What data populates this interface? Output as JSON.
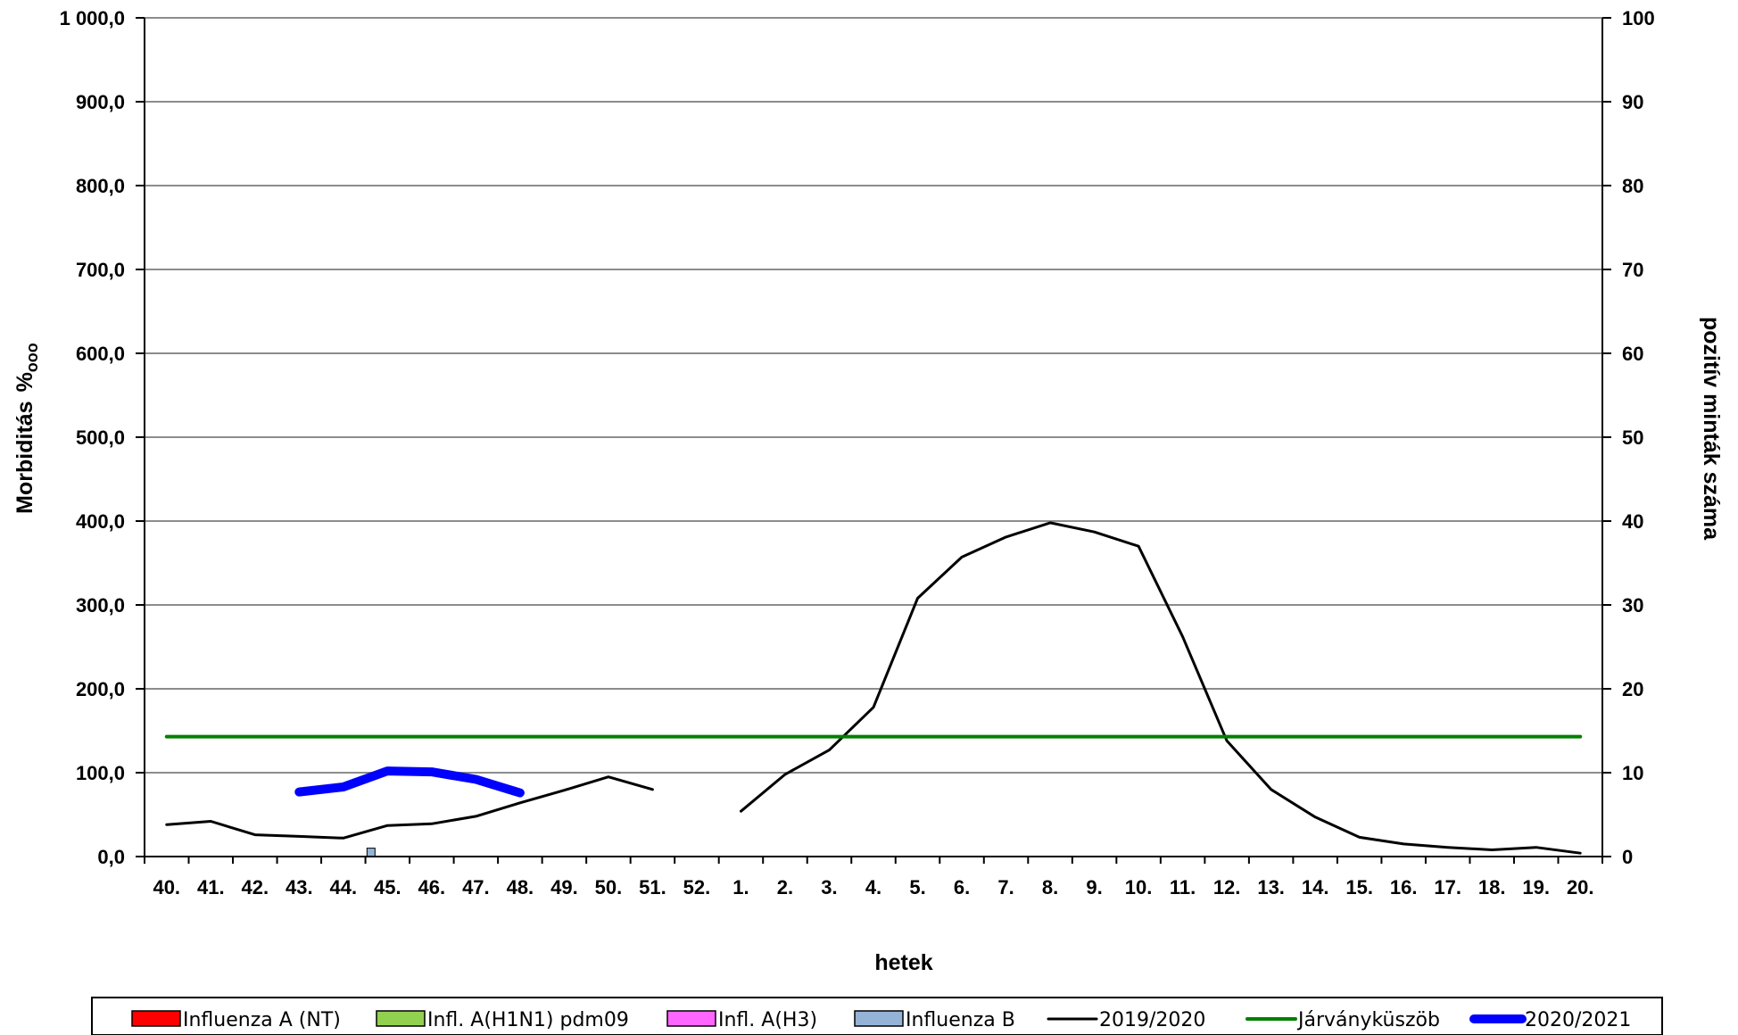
{
  "chart_data": {
    "type": "line",
    "xlabel": "hetek",
    "ylabel_left": "Morbiditás",
    "ylabel_left_unit": "%ooo",
    "ylabel_right": "pozitív minták száma",
    "categories": [
      "40.",
      "41.",
      "42.",
      "43.",
      "44.",
      "45.",
      "46.",
      "47.",
      "48.",
      "49.",
      "50.",
      "51.",
      "52.",
      "1.",
      "2.",
      "3.",
      "4.",
      "5.",
      "6.",
      "7.",
      "8.",
      "9.",
      "10.",
      "11.",
      "12.",
      "13.",
      "14.",
      "15.",
      "16.",
      "17.",
      "18.",
      "19.",
      "20."
    ],
    "ylim_left": [
      0,
      1000
    ],
    "ylim_right": [
      0,
      100
    ],
    "left_ticks": [
      "0,0",
      "100,0",
      "200,0",
      "300,0",
      "400,0",
      "500,0",
      "600,0",
      "700,0",
      "800,0",
      "900,0",
      "1 000,0"
    ],
    "right_ticks": [
      "0",
      "10",
      "20",
      "30",
      "40",
      "50",
      "60",
      "70",
      "80",
      "90",
      "100"
    ],
    "grid": true,
    "legend_position": "bottom",
    "series": [
      {
        "name": "Influenza A (NT)",
        "kind": "bar",
        "axis": "right",
        "color": "#ff0000",
        "values": [
          0,
          0,
          0,
          0,
          0,
          0,
          0,
          0,
          0,
          0,
          0,
          0,
          0,
          0,
          0,
          0,
          0,
          0,
          0,
          0,
          0,
          0,
          0,
          0,
          0,
          0,
          0,
          0,
          0,
          0,
          0,
          0,
          0
        ]
      },
      {
        "name": "Infl. A(H1N1) pdm09",
        "kind": "bar",
        "axis": "right",
        "color": "#92d050",
        "values": [
          0,
          0,
          0,
          0,
          0,
          0,
          0,
          0,
          0,
          0,
          0,
          0,
          0,
          0,
          0,
          0,
          0,
          0,
          0,
          0,
          0,
          0,
          0,
          0,
          0,
          0,
          0,
          0,
          0,
          0,
          0,
          0,
          0
        ]
      },
      {
        "name": "Infl. A(H3)",
        "kind": "bar",
        "axis": "right",
        "color": "#ff66ff",
        "values": [
          0,
          0,
          0,
          0,
          0,
          0,
          0,
          0,
          0,
          0,
          0,
          0,
          0,
          0,
          0,
          0,
          0,
          0,
          0,
          0,
          0,
          0,
          0,
          0,
          0,
          0,
          0,
          0,
          0,
          0,
          0,
          0,
          0
        ]
      },
      {
        "name": "Influenza B",
        "kind": "bar",
        "axis": "right",
        "color": "#95b3d7",
        "values": [
          0,
          0,
          0,
          0,
          1,
          0,
          0,
          0,
          0,
          0,
          0,
          0,
          0,
          0,
          0,
          0,
          0,
          0,
          0,
          0,
          0,
          0,
          0,
          0,
          0,
          0,
          0,
          0,
          0,
          0,
          0,
          0,
          0
        ]
      },
      {
        "name": "2019/2020",
        "kind": "line",
        "axis": "left",
        "color": "#000000",
        "width": 3,
        "values": [
          38,
          42,
          26,
          24,
          22,
          37,
          39,
          48,
          64,
          79,
          95,
          80,
          null,
          54,
          98,
          127,
          178,
          308,
          357,
          381,
          398,
          387,
          370,
          262,
          138,
          80,
          47,
          23,
          15,
          11,
          8,
          11,
          4
        ]
      },
      {
        "name": "Járványküszöb",
        "kind": "line",
        "axis": "left",
        "color": "#008000",
        "width": 4,
        "values": [
          143,
          143,
          143,
          143,
          143,
          143,
          143,
          143,
          143,
          143,
          143,
          143,
          143,
          143,
          143,
          143,
          143,
          143,
          143,
          143,
          143,
          143,
          143,
          143,
          143,
          143,
          143,
          143,
          143,
          143,
          143,
          143,
          143
        ]
      },
      {
        "name": "2020/2021",
        "kind": "line",
        "axis": "left",
        "color": "#0000ff",
        "width": 10,
        "values": [
          null,
          null,
          null,
          77,
          83,
          102,
          101,
          92,
          76,
          null,
          null,
          null,
          null,
          null,
          null,
          null,
          null,
          null,
          null,
          null,
          null,
          null,
          null,
          null,
          null,
          null,
          null,
          null,
          null,
          null,
          null,
          null,
          null
        ]
      }
    ]
  }
}
